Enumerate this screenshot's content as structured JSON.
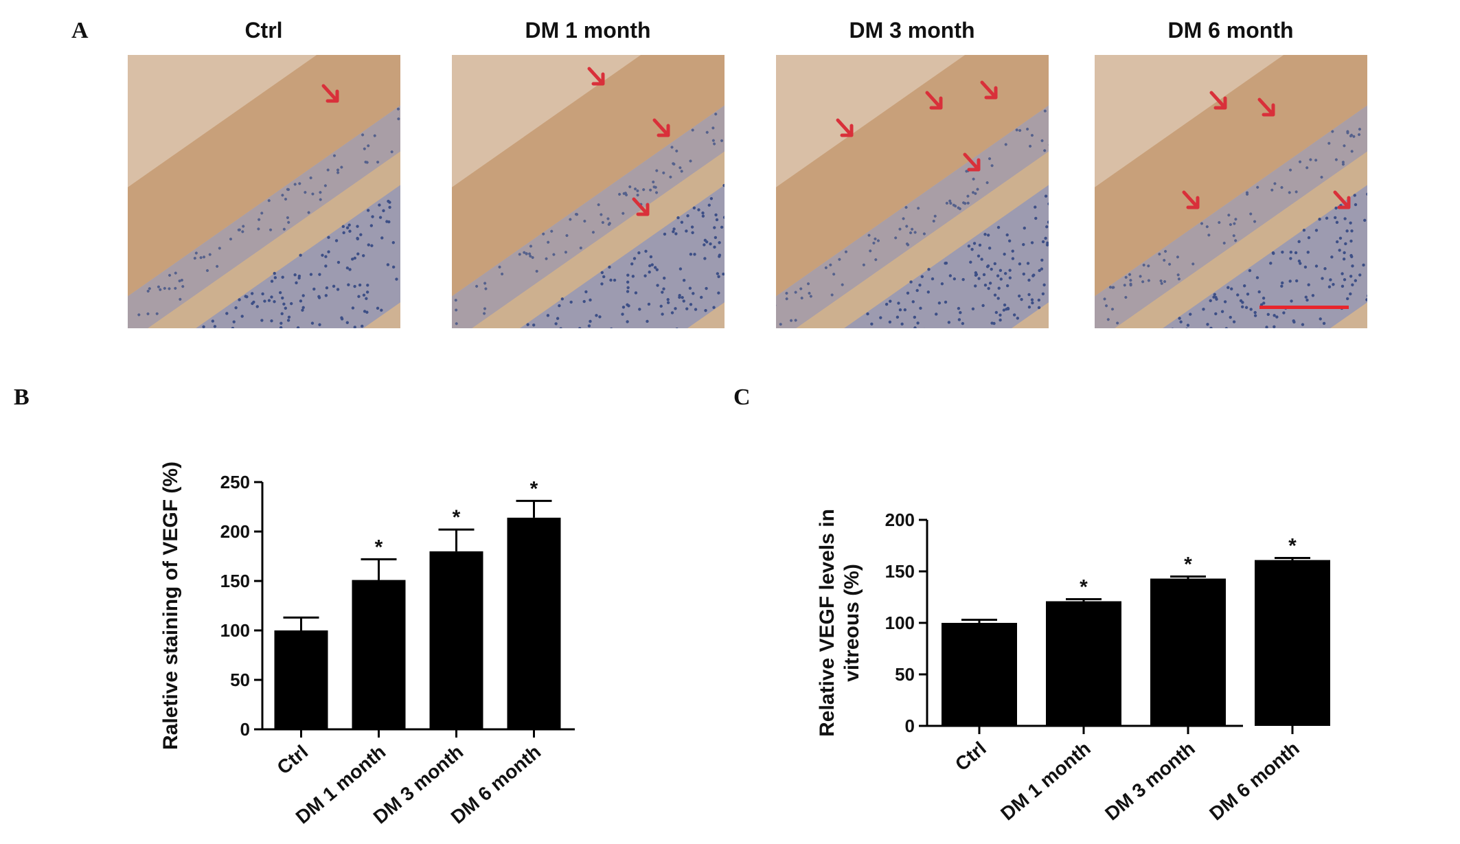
{
  "panel_labels": {
    "a": "A",
    "b": "B",
    "c": "C"
  },
  "micrographs": [
    {
      "title": "Ctrl",
      "arrows": 1,
      "scale_bar": false
    },
    {
      "title": "DM 1 month",
      "arrows": 3,
      "scale_bar": false
    },
    {
      "title": "DM 3 month",
      "arrows": 4,
      "scale_bar": false
    },
    {
      "title": "DM 6 month",
      "arrows": 4,
      "scale_bar": true
    }
  ],
  "colors": {
    "bar": "#000000",
    "axis": "#000000",
    "arrow": "#d9303a",
    "scale_bar": "#e8262c",
    "tissue": "#c9a47a",
    "nuclei": "#3d4f86"
  },
  "chart_data": [
    {
      "type": "bar",
      "categories": [
        "Ctrl",
        "DM 1 month",
        "DM 3 month",
        "DM 6 month"
      ],
      "values": [
        100,
        151,
        180,
        214
      ],
      "errors": [
        13,
        21,
        22,
        17
      ],
      "significance": [
        "",
        "*",
        "*",
        "*"
      ],
      "ylabel": "Raletive staining of VEGF (%)",
      "ylim": [
        0,
        250
      ],
      "yticks": [
        0,
        50,
        100,
        150,
        200,
        250
      ],
      "grid": false
    },
    {
      "type": "bar",
      "categories": [
        "Ctrl",
        "DM 1 month",
        "DM 3 month",
        "DM 6 month"
      ],
      "values": [
        100,
        121,
        143,
        161
      ],
      "errors": [
        3,
        2,
        2,
        2
      ],
      "significance": [
        "",
        "*",
        "*",
        "*"
      ],
      "ylabel": [
        "Relative VEGF levels in",
        "vitreous (%)"
      ],
      "ylim": [
        0,
        200
      ],
      "yticks": [
        0,
        50,
        100,
        150,
        200
      ],
      "grid": false
    }
  ]
}
